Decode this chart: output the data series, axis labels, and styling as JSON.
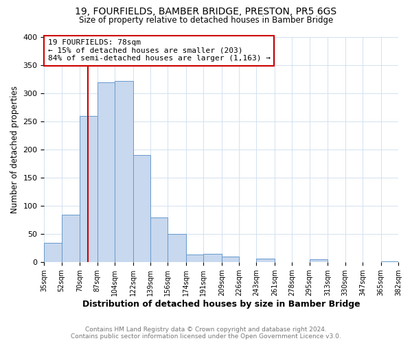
{
  "title": "19, FOURFIELDS, BAMBER BRIDGE, PRESTON, PR5 6GS",
  "subtitle": "Size of property relative to detached houses in Bamber Bridge",
  "xlabel": "Distribution of detached houses by size in Bamber Bridge",
  "ylabel": "Number of detached properties",
  "bin_edges": [
    35,
    52,
    70,
    87,
    104,
    122,
    139,
    156,
    174,
    191,
    209,
    226,
    243,
    261,
    278,
    295,
    313,
    330,
    347,
    365,
    382
  ],
  "bar_heights": [
    35,
    85,
    260,
    320,
    322,
    190,
    80,
    50,
    14,
    15,
    10,
    0,
    6,
    0,
    0,
    5,
    0,
    0,
    0,
    2
  ],
  "bar_color": "#c8d8ee",
  "bar_edgecolor": "#6699cc",
  "vline_x": 78,
  "vline_color": "#cc0000",
  "ylim": [
    0,
    400
  ],
  "yticks": [
    0,
    50,
    100,
    150,
    200,
    250,
    300,
    350,
    400
  ],
  "annotation_title": "19 FOURFIELDS: 78sqm",
  "annotation_line1": "← 15% of detached houses are smaller (203)",
  "annotation_line2": "84% of semi-detached houses are larger (1,163) →",
  "annotation_box_color": "#ffffff",
  "annotation_box_edgecolor": "#cc0000",
  "footer1": "Contains HM Land Registry data © Crown copyright and database right 2024.",
  "footer2": "Contains public sector information licensed under the Open Government Licence v3.0.",
  "background_color": "#ffffff",
  "plot_background": "#ffffff",
  "grid_color": "#ccddee"
}
